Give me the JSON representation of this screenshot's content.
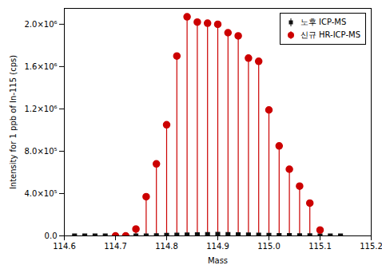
{
  "chart_data": {
    "type": "stem",
    "xlabel": "Mass",
    "ylabel": "Intensity for 1 ppb of In-115 (cps)",
    "xlim": [
      114.6,
      115.2
    ],
    "ylim": [
      0,
      2150000
    ],
    "xticks": [
      114.6,
      114.7,
      114.8,
      114.9,
      {
        "value": 115.0,
        "label": "115.0"
      },
      115.1,
      115.2
    ],
    "yticks": [
      {
        "value": 0,
        "label": "0.0"
      },
      {
        "value": 400000,
        "label": "4.0×10⁵"
      },
      {
        "value": 800000,
        "label": "8.0×10⁵"
      },
      {
        "value": 1200000,
        "label": "1.2×10⁶"
      },
      {
        "value": 1600000,
        "label": "1.6×10⁶"
      },
      {
        "value": 2000000,
        "label": "2.0×10⁶"
      }
    ],
    "grid": false,
    "legend": "upper right",
    "series": [
      {
        "name": "노후 ICP-MS",
        "color": "#111111",
        "marker": "square",
        "x": [
          114.62,
          114.64,
          114.66,
          114.68,
          114.7,
          114.72,
          114.74,
          114.76,
          114.78,
          114.8,
          114.82,
          114.84,
          114.86,
          114.88,
          114.9,
          114.92,
          114.94,
          114.96,
          114.98,
          115.0,
          115.02,
          115.04,
          115.06,
          115.08,
          115.1,
          115.12,
          115.14
        ],
        "values": [
          0,
          0,
          0,
          0,
          0,
          0,
          0,
          0,
          2000,
          5000,
          7000,
          9000,
          11000,
          13000,
          14000,
          13000,
          11000,
          9000,
          7000,
          5000,
          4000,
          3000,
          2000,
          1000,
          0,
          0,
          0
        ]
      },
      {
        "name": "신규 HR-ICP-MS",
        "color": "#cc0000",
        "marker": "circle",
        "x": [
          114.7,
          114.72,
          114.74,
          114.76,
          114.78,
          114.8,
          114.82,
          114.84,
          114.86,
          114.88,
          114.9,
          114.92,
          114.94,
          114.96,
          114.98,
          115.0,
          115.02,
          115.04,
          115.06,
          115.08,
          115.1
        ],
        "values": [
          0,
          0,
          65000,
          370000,
          680000,
          1050000,
          1700000,
          2070000,
          2020000,
          2010000,
          2000000,
          1920000,
          1890000,
          1680000,
          1650000,
          1190000,
          850000,
          630000,
          470000,
          310000,
          55000
        ]
      }
    ]
  }
}
